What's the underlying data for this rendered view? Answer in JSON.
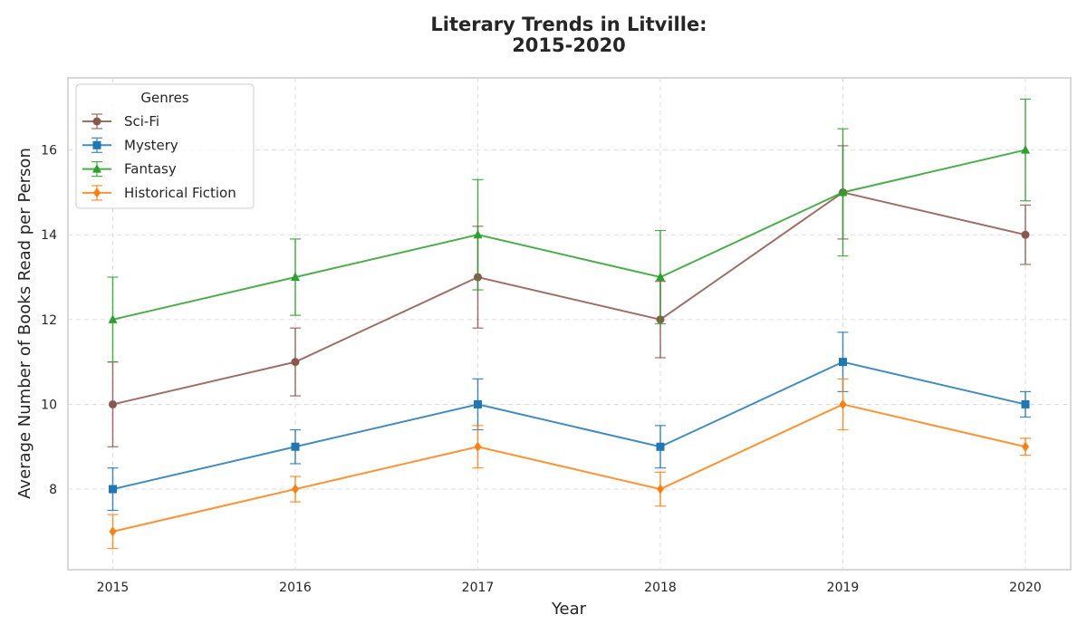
{
  "chart_data": {
    "type": "line",
    "title_lines": [
      "Literary Trends in Litville:",
      "2015-2020"
    ],
    "xlabel": "Year",
    "ylabel": "Average Number of Books Read per Person",
    "x": [
      2015,
      2016,
      2017,
      2018,
      2019,
      2020
    ],
    "ylim": [
      6.1,
      17.7
    ],
    "yticks": [
      8,
      10,
      12,
      14,
      16
    ],
    "grid": true,
    "legend": {
      "title": "Genres",
      "placement": "top-left"
    },
    "series": [
      {
        "name": "Sci-Fi",
        "color": "#8c564b",
        "marker": "circle",
        "values": [
          10,
          11,
          13,
          12,
          15,
          14
        ],
        "errors": [
          1.0,
          0.8,
          1.2,
          0.9,
          1.1,
          0.7
        ]
      },
      {
        "name": "Mystery",
        "color": "#1f77b4",
        "marker": "square",
        "values": [
          8,
          9,
          10,
          9,
          11,
          10
        ],
        "errors": [
          0.5,
          0.4,
          0.6,
          0.5,
          0.7,
          0.3
        ]
      },
      {
        "name": "Fantasy",
        "color": "#2ca02c",
        "marker": "triangle",
        "values": [
          12,
          13,
          14,
          13,
          15,
          16
        ],
        "errors": [
          1.0,
          0.9,
          1.3,
          1.1,
          1.5,
          1.2
        ]
      },
      {
        "name": "Historical Fiction",
        "color": "#ff7f0e",
        "marker": "diamond",
        "values": [
          7,
          8,
          9,
          8,
          10,
          9
        ],
        "errors": [
          0.4,
          0.3,
          0.5,
          0.4,
          0.6,
          0.2
        ]
      }
    ]
  }
}
